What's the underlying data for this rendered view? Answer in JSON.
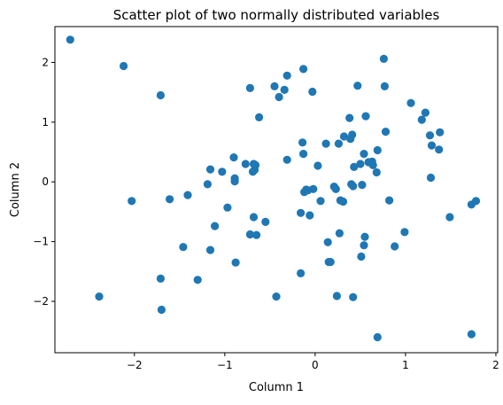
{
  "chart_data": {
    "type": "scatter",
    "title": "Scatter plot of two normally distributed variables",
    "xlabel": "Column 1",
    "ylabel": "Column 2",
    "xlim": [
      -2.88,
      2.02
    ],
    "ylim": [
      -2.86,
      2.6
    ],
    "xticks": [
      -2,
      -1,
      0,
      1,
      2
    ],
    "yticks": [
      -2,
      -1,
      0,
      1,
      2
    ],
    "grid": false,
    "legend": "none",
    "marker_color": "#1f77b4",
    "points": [
      {
        "x": -2.71,
        "y": 2.38
      },
      {
        "x": -2.39,
        "y": -1.92
      },
      {
        "x": -2.12,
        "y": 1.94
      },
      {
        "x": -2.03,
        "y": -0.32
      },
      {
        "x": -1.71,
        "y": 1.45
      },
      {
        "x": -1.71,
        "y": -1.62
      },
      {
        "x": -1.7,
        "y": -2.14
      },
      {
        "x": -1.61,
        "y": -0.29
      },
      {
        "x": -1.46,
        "y": -1.09
      },
      {
        "x": -1.41,
        "y": -0.22
      },
      {
        "x": -1.3,
        "y": -1.64
      },
      {
        "x": -1.19,
        "y": -0.04
      },
      {
        "x": -1.16,
        "y": 0.21
      },
      {
        "x": -1.16,
        "y": -1.14
      },
      {
        "x": -1.11,
        "y": -0.74
      },
      {
        "x": -1.03,
        "y": 0.17
      },
      {
        "x": -0.97,
        "y": -0.43
      },
      {
        "x": -0.9,
        "y": 0.41
      },
      {
        "x": -0.89,
        "y": 0.06
      },
      {
        "x": -0.89,
        "y": 0.01
      },
      {
        "x": -0.88,
        "y": -1.35
      },
      {
        "x": -0.77,
        "y": 0.3
      },
      {
        "x": -0.72,
        "y": 1.57
      },
      {
        "x": -0.72,
        "y": -0.88
      },
      {
        "x": -0.69,
        "y": 0.17
      },
      {
        "x": -0.68,
        "y": 0.3
      },
      {
        "x": -0.68,
        "y": -0.59
      },
      {
        "x": -0.67,
        "y": 0.2
      },
      {
        "x": -0.66,
        "y": 0.28
      },
      {
        "x": -0.65,
        "y": -0.89
      },
      {
        "x": -0.62,
        "y": 1.08
      },
      {
        "x": -0.55,
        "y": -0.67
      },
      {
        "x": -0.45,
        "y": 1.6
      },
      {
        "x": -0.43,
        "y": -1.92
      },
      {
        "x": -0.4,
        "y": 1.42
      },
      {
        "x": -0.34,
        "y": 1.54
      },
      {
        "x": -0.31,
        "y": 1.78
      },
      {
        "x": -0.31,
        "y": 0.37
      },
      {
        "x": -0.16,
        "y": -0.52
      },
      {
        "x": -0.16,
        "y": -1.53
      },
      {
        "x": -0.14,
        "y": 0.66
      },
      {
        "x": -0.13,
        "y": 0.47
      },
      {
        "x": -0.13,
        "y": 1.89
      },
      {
        "x": -0.12,
        "y": -0.17
      },
      {
        "x": -0.1,
        "y": -0.13
      },
      {
        "x": -0.08,
        "y": -0.14
      },
      {
        "x": -0.06,
        "y": -0.56
      },
      {
        "x": -0.03,
        "y": 1.51
      },
      {
        "x": -0.02,
        "y": -0.12
      },
      {
        "x": 0.03,
        "y": 0.27
      },
      {
        "x": 0.06,
        "y": -0.32
      },
      {
        "x": 0.12,
        "y": 0.64
      },
      {
        "x": 0.14,
        "y": -1.01
      },
      {
        "x": 0.15,
        "y": -1.34
      },
      {
        "x": 0.17,
        "y": -1.34
      },
      {
        "x": 0.21,
        "y": -0.08
      },
      {
        "x": 0.23,
        "y": -0.12
      },
      {
        "x": 0.24,
        "y": -1.91
      },
      {
        "x": 0.26,
        "y": 0.64
      },
      {
        "x": 0.27,
        "y": -0.86
      },
      {
        "x": 0.28,
        "y": -0.31
      },
      {
        "x": 0.31,
        "y": -0.33
      },
      {
        "x": 0.32,
        "y": 0.76
      },
      {
        "x": 0.38,
        "y": 1.07
      },
      {
        "x": 0.39,
        "y": 0.72
      },
      {
        "x": 0.4,
        "y": -0.04
      },
      {
        "x": 0.41,
        "y": 0.79
      },
      {
        "x": 0.42,
        "y": -0.07
      },
      {
        "x": 0.42,
        "y": -1.93
      },
      {
        "x": 0.43,
        "y": 0.25
      },
      {
        "x": 0.47,
        "y": 1.61
      },
      {
        "x": 0.5,
        "y": 0.3
      },
      {
        "x": 0.51,
        "y": -1.25
      },
      {
        "x": 0.52,
        "y": -0.05
      },
      {
        "x": 0.54,
        "y": 0.47
      },
      {
        "x": 0.54,
        "y": -1.06
      },
      {
        "x": 0.55,
        "y": -0.92
      },
      {
        "x": 0.56,
        "y": 1.1
      },
      {
        "x": 0.59,
        "y": 0.33
      },
      {
        "x": 0.63,
        "y": 0.34
      },
      {
        "x": 0.64,
        "y": 0.28
      },
      {
        "x": 0.68,
        "y": 0.16
      },
      {
        "x": 0.69,
        "y": -2.6
      },
      {
        "x": 0.69,
        "y": 0.53
      },
      {
        "x": 0.76,
        "y": 2.06
      },
      {
        "x": 0.77,
        "y": 1.6
      },
      {
        "x": 0.78,
        "y": 0.84
      },
      {
        "x": 0.82,
        "y": -0.31
      },
      {
        "x": 0.88,
        "y": -1.08
      },
      {
        "x": 0.99,
        "y": -0.84
      },
      {
        "x": 1.06,
        "y": 1.32
      },
      {
        "x": 1.18,
        "y": 1.04
      },
      {
        "x": 1.22,
        "y": 1.16
      },
      {
        "x": 1.27,
        "y": 0.78
      },
      {
        "x": 1.28,
        "y": 0.07
      },
      {
        "x": 1.29,
        "y": 0.61
      },
      {
        "x": 1.37,
        "y": 0.54
      },
      {
        "x": 1.38,
        "y": 0.83
      },
      {
        "x": 1.49,
        "y": -0.59
      },
      {
        "x": 1.73,
        "y": -2.55
      },
      {
        "x": 1.73,
        "y": -0.38
      },
      {
        "x": 1.78,
        "y": -0.32
      }
    ]
  }
}
